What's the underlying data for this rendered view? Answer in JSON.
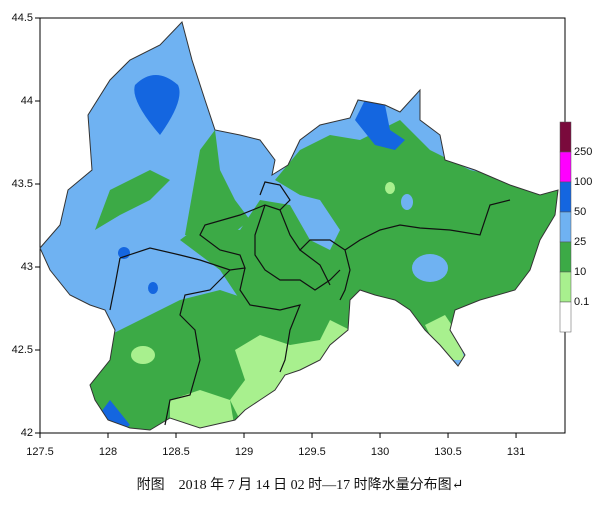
{
  "map": {
    "xlim": [
      127.5,
      131.36
    ],
    "ylim": [
      42,
      44.5
    ],
    "xticks": [
      127.5,
      128,
      128.5,
      129,
      129.5,
      130,
      130.5,
      131
    ],
    "yticks": [
      42,
      42.5,
      43,
      43.5,
      44,
      44.5
    ]
  },
  "legend": {
    "thresholds": [
      250,
      100,
      50,
      25,
      10,
      0.1
    ],
    "colors": [
      "#7a0a3c",
      "#ff00ff",
      "#1466e0",
      "#6fb2f2",
      "#3caa46",
      "#a8f08e",
      "#ffffff"
    ]
  },
  "caption": "附图　2018 年 7 月 14 日 02 时—17 时降水量分布图↵"
}
